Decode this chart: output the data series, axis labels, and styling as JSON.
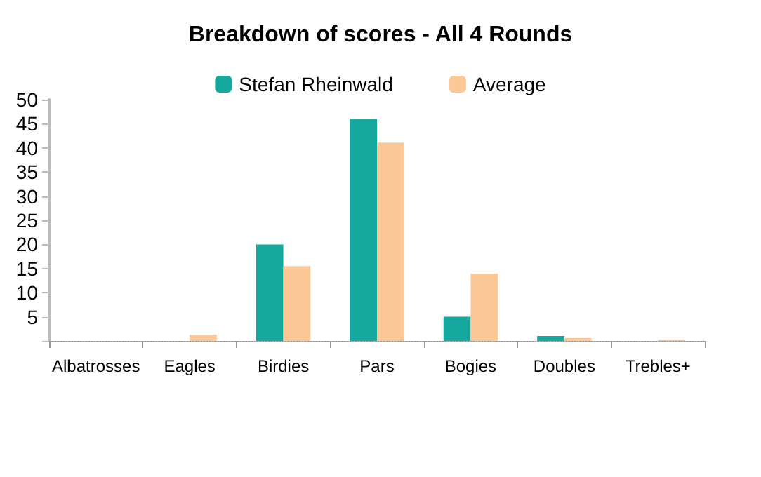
{
  "chart_data": {
    "type": "bar",
    "title": "Breakdown of scores - All 4 Rounds",
    "categories": [
      "Albatrosses",
      "Eagles",
      "Birdies",
      "Pars",
      "Bogies",
      "Doubles",
      "Trebles+"
    ],
    "series": [
      {
        "name": "Stefan Rheinwald",
        "color": "#14a89e",
        "values": [
          0,
          0,
          20,
          46,
          5,
          1,
          0
        ]
      },
      {
        "name": "Average",
        "color": "#fcc896",
        "values": [
          0,
          1.3,
          15.5,
          41.1,
          13.9,
          0.6,
          0.2
        ]
      }
    ],
    "ylim": [
      0,
      50
    ],
    "yticks": [
      {
        "value": 0,
        "label": null
      },
      5,
      10,
      15,
      20,
      25,
      30,
      35,
      40,
      45,
      50
    ],
    "grid": false,
    "legend": "top"
  }
}
